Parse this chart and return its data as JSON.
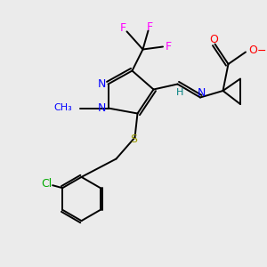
{
  "bg_color": "#ebebeb",
  "bond_color": "#000000",
  "atom_colors": {
    "N": "#0000ff",
    "O": "#ff0000",
    "S": "#999900",
    "F": "#ff00ff",
    "Cl": "#00aa00",
    "H_imine": "#008080",
    "C": "#000000"
  },
  "lw": 1.4
}
